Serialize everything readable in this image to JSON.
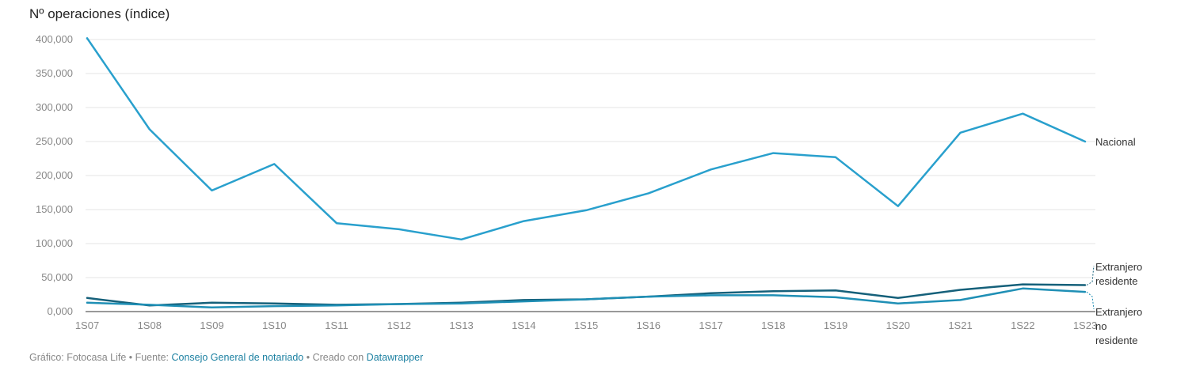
{
  "chart_data": {
    "type": "line",
    "title": "Nº operaciones (índice)",
    "x": [
      "1S07",
      "1S08",
      "1S09",
      "1S10",
      "1S11",
      "1S12",
      "1S13",
      "1S14",
      "1S15",
      "1S16",
      "1S17",
      "1S18",
      "1S19",
      "1S20",
      "1S21",
      "1S22",
      "1S23"
    ],
    "ylim": [
      0,
      400000
    ],
    "yticks": [
      0,
      50000,
      100000,
      150000,
      200000,
      250000,
      300000,
      350000,
      400000
    ],
    "ytick_labels": [
      "0,000",
      "50,000",
      "100,000",
      "150,000",
      "200,000",
      "250,000",
      "300,000",
      "350,000",
      "400,000"
    ],
    "grid": true,
    "series": [
      {
        "name": "Nacional",
        "label_lines": [
          "Nacional"
        ],
        "color": "#29a0cd",
        "values": [
          402000,
          268000,
          178000,
          217000,
          130000,
          121000,
          106000,
          133000,
          149000,
          174000,
          209000,
          233000,
          227000,
          155000,
          263000,
          291000,
          250000
        ]
      },
      {
        "name": "Extranjero residente",
        "label_lines": [
          "Extranjero",
          "residente"
        ],
        "color": "#15607a",
        "values": [
          20000,
          9000,
          13000,
          12000,
          10000,
          11000,
          13000,
          17000,
          18000,
          22000,
          27000,
          30000,
          31000,
          20000,
          32000,
          40000,
          39000
        ]
      },
      {
        "name": "Extranjero no residente",
        "label_lines": [
          "Extranjero",
          "no",
          "residente"
        ],
        "color": "#1f8fb5",
        "values": [
          13000,
          10000,
          6000,
          8000,
          9000,
          11000,
          12000,
          15000,
          18000,
          22000,
          24000,
          24000,
          21000,
          12000,
          17000,
          34000,
          29000
        ]
      }
    ]
  },
  "footer": {
    "prefix": "Gráfico: Fotocasa Life • Fuente: ",
    "source_link": "Consejo General de notariado",
    "middle": " • Creado con ",
    "tool_link": "Datawrapper"
  }
}
